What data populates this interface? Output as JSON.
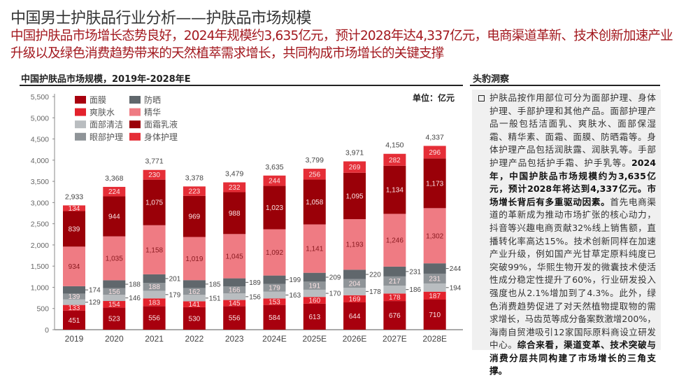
{
  "header": {
    "title": "中国男士护肤品行业分析——护肤品市场规模",
    "subtitle": "中国护肤品市场增长态势良好，2024年规模约3,635亿元，预计2028年达4,337亿元，电商渠道革新、技术创新加速产业升级以及绿色消费趋势带来的天然植萃需求增长，共同构成市场增长的关键支撑"
  },
  "chart_data": {
    "type": "bar",
    "stacked": true,
    "title": "中国护肤品市场规模，2019年-2028年E",
    "unit": "单位：亿元",
    "categories": [
      "2019",
      "2020",
      "2021",
      "2022",
      "2023",
      "2024E",
      "2025E",
      "2026E",
      "2027E",
      "2028E"
    ],
    "ylim": [
      0,
      5500
    ],
    "yticks": [
      "0",
      "500",
      "1,000",
      "1,500",
      "2,000",
      "2,500",
      "3,000",
      "3,500",
      "4,000",
      "4,500",
      "5,000",
      "5,500"
    ],
    "grid": false,
    "legend": "top-left",
    "totals": [
      "2,933",
      "3,368",
      "3,771",
      "3,378",
      "3,479",
      "3,635",
      "3,799",
      "3,971",
      "4,150",
      "4,337"
    ],
    "series": [
      {
        "name": "面膜",
        "color": "#a8000e",
        "values": [
          451,
          523,
          556,
          530,
          556,
          584,
          613,
          644,
          676,
          710
        ]
      },
      {
        "name": "爽肤水",
        "color": "#e3222c",
        "values": [
          133,
          154,
          183,
          141,
          145,
          153,
          160,
          169,
          178,
          187
        ]
      },
      {
        "name": "面部清洁",
        "color": "#b9bdc0",
        "values": [
          129,
          146,
          179,
          151,
          156,
          163,
          170,
          178,
          186,
          194
        ]
      },
      {
        "name": "眼部护理",
        "color": "#8f9498",
        "values": [
          139,
          156,
          188,
          162,
          166,
          179,
          191,
          204,
          217,
          231
        ]
      },
      {
        "name": "防晒",
        "color": "#60676c",
        "values": [
          174,
          188,
          201,
          185,
          189,
          199,
          209,
          220,
          231,
          244
        ]
      },
      {
        "name": "精华",
        "color": "#ef7b83",
        "values": [
          934,
          1035,
          1158,
          1019,
          1045,
          1092,
          1141,
          1193,
          1246,
          1302
        ]
      },
      {
        "name": "面霜乳液",
        "color": "#9a0008",
        "values": [
          839,
          944,
          1075,
          969,
          988,
          1023,
          1058,
          1095,
          1134,
          1173
        ]
      },
      {
        "name": "身体护理",
        "color": "#e52e37",
        "values": [
          134,
          224,
          230,
          223,
          232,
          244,
          256,
          269,
          282,
          296
        ]
      }
    ]
  },
  "insight": {
    "title": "头豹洞察",
    "segments": [
      "护肤品按作用部位可分为面部护理、身体护理、手部护理和其他产品。面部护理产品一般包括洁面乳、爽肤水、面部保湿霜、精华素、面霜、面膜、防晒霜等。身体护理产品包括润肤露、润肤乳等。手部护理产品包括护手霜、护手乳等。",
      "2024年，中国护肤品市场规模约为3,635亿元，预计2028年将达到4,337亿元。市场增长背后有多重驱动因素。",
      "首先电商渠道的革新成为推动市场扩张的核心动力，抖音等兴趣电商贡献32%线上销售额，直播转化率高达15%。技术创新同样在加速产业升级，例如国产光甘草定原料纯度已突破99%，华熙生物开发的微囊技术使活性成分稳定性提升了60%，行业研发投入强度也从2.1%增加到了4.3%。此外，绿色消费趋势促进了对天然植物提取物的需求增长，马齿苋等成分备案数激增200%，海南自贸港吸引12家国际原料商设立研发中心。",
      "综合来看，渠道变革、技术突破与消费分层共同构建了市场增长的三角支撑。"
    ]
  }
}
